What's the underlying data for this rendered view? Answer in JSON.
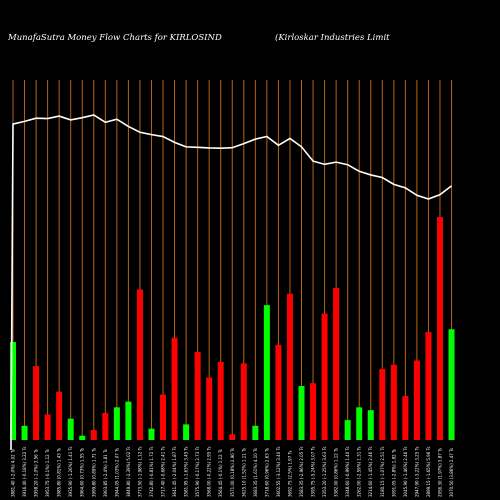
{
  "header": {
    "left_title": "MunafaSutra  Money Flow  Charts for KIRLOSIND",
    "right_title": "(Kirloskar Industries Limit"
  },
  "chart_data": {
    "type": "bar",
    "title": "MunafaSutra  Money Flow  Charts for KIRLOSIND",
    "subtitle": "(Kirloskar Industries Limit",
    "grid": true,
    "colors": {
      "background": "#000000",
      "grid": "#b8651b",
      "up": "#00ff00",
      "down": "#ff0000",
      "price_line": "#ffffff"
    },
    "categories": [
      "3881.40 (-2.0%) 4.02 Ts",
      "3916.40 (-0.18%) 3.22 Ts",
      "3958.20 (-1.0%) 3.56 Ts",
      "3953.75 (-0.1%) 1.12 Ts",
      "3985.80 (0.81%) 1.43 Ts",
      "3935.90 (-1.26%) 1.41 Ts",
      "3964.60 (0.73%) 1.55 Ts",
      "3999.80 (0.89%) 1.71 Ts",
      "3903.85 (-2.4%) 1.81 Ts",
      "3944.05 (1.03%) 2.07 Ts",
      "3849.80 (-2.39%) 5.02 Ts",
      "3773.50 (-1.98%) 1.12 Ts",
      "3742.80 (-0.81%) 1.72 Ts",
      "3717.40 (-0.68%) 2.41 Ts",
      "3641.45 (-2.04%) 1.87 Ts",
      "3581.95 (-1.63%) 3.45 Ts",
      "3575.90 (-0.17%) 2.73 Ts",
      "3568.00 (-0.22%) 2.95 Ts",
      "3564.45 (-0.1%) 1.12 Ts",
      "3571.00 (0.18%) 2.96 Ts",
      "3625.10 (1.52%) 1.11 Ts",
      "3683.35 (1.61%) 4.10 Ts",
      "3718.60 (0.96%) 2.63 Ts",
      "3602.55 (-3.12%) 3.40 Ts",
      "3692.75 (2.5%) 1.97 Ts",
      "3583.35 (-2.96%) 2.05 Ts",
      "3395.75 (-5.24%) 3.07 Ts",
      "3353.20 (-1.25%) 3.63 Ts",
      "3382.00 (0.86%) 1.12 Ts",
      "3348.60 (-0.99%) 1.40 Ts",
      "3262.00 (-2.59%) 1.31 Ts",
      "3214.60 (-1.45%) 2.46 Ts",
      "3180.15 (-1.07%) 2.51 Ts",
      "3091.05 (-2.8%) 1.82 Ts",
      "3045.90 (-1.46%) 2.46 Ts",
      "2947.90 (-3.22%) 3.25 Ts",
      "2899.15 (-1.65%) 5.96 Ts",
      "2956.30 (1.97%) 3.87 Ts",
      "3070.50 (3.86%) 2.47 Ts"
    ],
    "values": [
      6.9,
      1.0,
      5.2,
      1.8,
      3.4,
      1.5,
      0.3,
      0.7,
      1.9,
      2.3,
      2.7,
      10.6,
      0.8,
      3.2,
      7.2,
      1.1,
      6.2,
      4.4,
      5.5,
      0.4,
      5.4,
      1.0,
      9.5,
      6.7,
      10.3,
      3.8,
      4.0,
      8.9,
      10.7,
      1.4,
      2.3,
      2.1,
      5.0,
      5.3,
      3.1,
      5.6,
      7.6,
      15.7,
      7.8
    ],
    "directions": [
      "up",
      "up",
      "down",
      "down",
      "down",
      "up",
      "up",
      "down",
      "down",
      "up",
      "up",
      "down",
      "up",
      "down",
      "down",
      "up",
      "down",
      "down",
      "down",
      "down",
      "down",
      "up",
      "up",
      "down",
      "down",
      "up",
      "down",
      "down",
      "down",
      "up",
      "up",
      "up",
      "down",
      "down",
      "down",
      "down",
      "down",
      "down",
      "up"
    ],
    "price": [
      3881.4,
      3916.4,
      3958.2,
      3953.75,
      3985.8,
      3935.9,
      3964.6,
      3999.8,
      3903.85,
      3944.05,
      3849.8,
      3773.5,
      3742.8,
      3717.4,
      3641.45,
      3581.95,
      3575.9,
      3568.0,
      3564.45,
      3571.0,
      3625.1,
      3683.35,
      3718.6,
      3602.55,
      3692.75,
      3583.35,
      3395.75,
      3353.2,
      3382.0,
      3348.6,
      3262.0,
      3214.6,
      3180.15,
      3091.05,
      3045.9,
      2947.9,
      2899.15,
      2956.3,
      3070.5
    ],
    "price_start": 1230.0,
    "xlabel": "",
    "ylabel": ""
  }
}
